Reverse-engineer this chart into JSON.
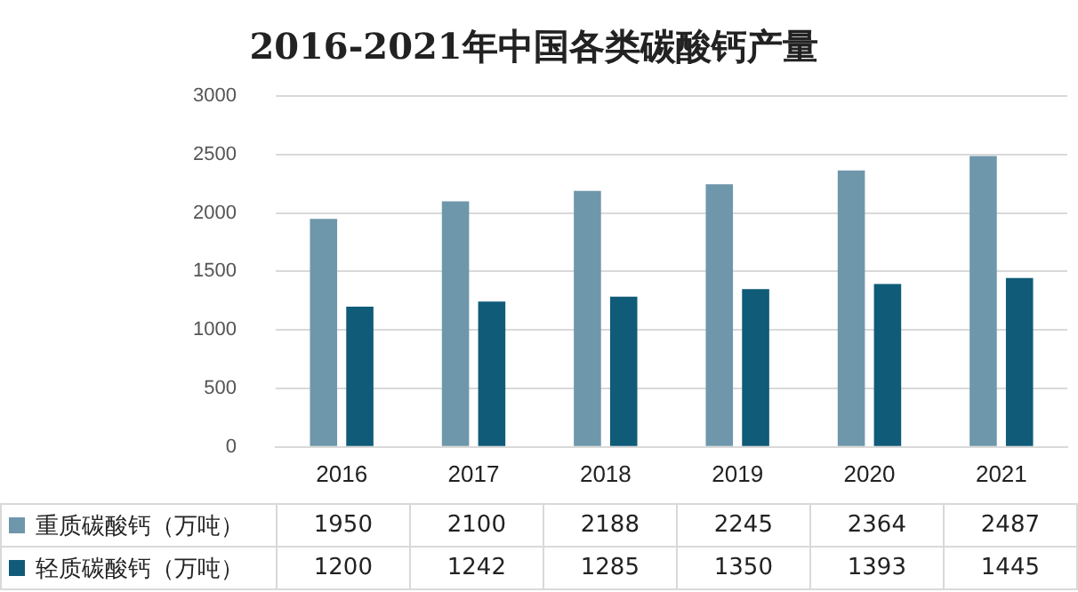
{
  "chart_data": {
    "type": "bar",
    "title": "2016-2021年中国各类碳酸钙产量",
    "categories": [
      "2016",
      "2017",
      "2018",
      "2019",
      "2020",
      "2021"
    ],
    "series": [
      {
        "name": "重质碳酸钙（万吨）",
        "color": "#6f97ab",
        "values": [
          1950,
          2100,
          2188,
          2245,
          2364,
          2487
        ]
      },
      {
        "name": "轻质碳酸钙（万吨）",
        "color": "#0f5b78",
        "values": [
          1200,
          1242,
          1285,
          1350,
          1393,
          1445
        ]
      }
    ],
    "ylim": [
      0,
      3000
    ],
    "yticks": [
      0,
      500,
      1000,
      1500,
      2000,
      2500,
      3000
    ],
    "grid": "y",
    "legend": "bottom",
    "data_labels": true
  }
}
